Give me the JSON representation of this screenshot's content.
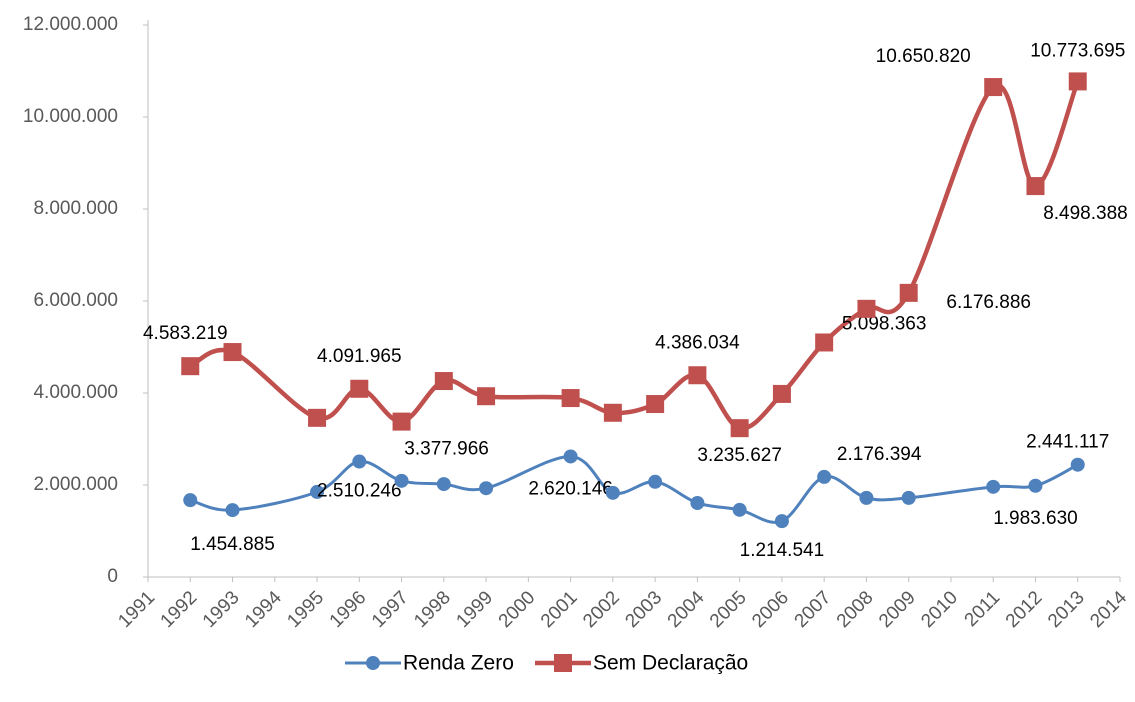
{
  "chart_data": {
    "type": "line",
    "xlim": [
      1991,
      2014
    ],
    "xticks": [
      1991,
      1992,
      1993,
      1994,
      1995,
      1996,
      1997,
      1998,
      1999,
      2000,
      2001,
      2002,
      2003,
      2004,
      2005,
      2006,
      2007,
      2008,
      2009,
      2010,
      2011,
      2012,
      2013,
      2014
    ],
    "ylim": [
      0,
      12000000
    ],
    "yticks": [
      0,
      {
        "value": 2000000,
        "label": "2.000.000"
      },
      {
        "value": 4000000,
        "label": "4.000.000"
      },
      {
        "value": 6000000,
        "label": "6.000.000"
      },
      {
        "value": 8000000,
        "label": "8.000.000"
      },
      {
        "value": 10000000,
        "label": "10.000.000"
      },
      {
        "value": 12000000,
        "label": "12.000.000"
      }
    ],
    "grid": false,
    "legend": "bottom",
    "series": [
      {
        "name": "Renda Zero",
        "color": "#4f81bd",
        "marker": "circle",
        "x": [
          1992,
          1993,
          1995,
          1996,
          1997,
          1998,
          1999,
          2001,
          2002,
          2003,
          2004,
          2005,
          2006,
          2007,
          2008,
          2009,
          2011,
          2012,
          2013
        ],
        "values": [
          1670000,
          1454885,
          1850000,
          2510246,
          2090000,
          2020000,
          1930000,
          2620146,
          1830000,
          2070000,
          1610000,
          1460000,
          1214541,
          2176394,
          1720000,
          1720000,
          1960000,
          1983630,
          2441117
        ],
        "value_labels": [
          null,
          "1.454.885",
          null,
          "2.510.246",
          null,
          null,
          null,
          "2.620.146",
          null,
          null,
          null,
          null,
          "1.214.541",
          "2.176.394",
          null,
          null,
          null,
          "1.983.630",
          "2.441.117"
        ]
      },
      {
        "name": "Sem Declaração",
        "color": "#c0504d",
        "marker": "square",
        "x": [
          1992,
          1993,
          1995,
          1996,
          1997,
          1998,
          1999,
          2001,
          2002,
          2003,
          2004,
          2005,
          2006,
          2007,
          2008,
          2009,
          2011,
          2012,
          2013
        ],
        "values": [
          4583219,
          4890000,
          3460000,
          4091965,
          3377966,
          4260000,
          3930000,
          3890000,
          3570000,
          3760000,
          4386034,
          3235627,
          3980000,
          5098363,
          5830000,
          6176886,
          10650820,
          8498388,
          10773695
        ],
        "value_labels": [
          "4.583.219",
          null,
          null,
          "4.091.965",
          "3.377.966",
          null,
          null,
          null,
          null,
          null,
          "4.386.034",
          "3.235.627",
          null,
          "5.098.363",
          null,
          "6.176.886",
          "10.650.820",
          "8.498.388",
          "10.773.695"
        ]
      }
    ]
  }
}
